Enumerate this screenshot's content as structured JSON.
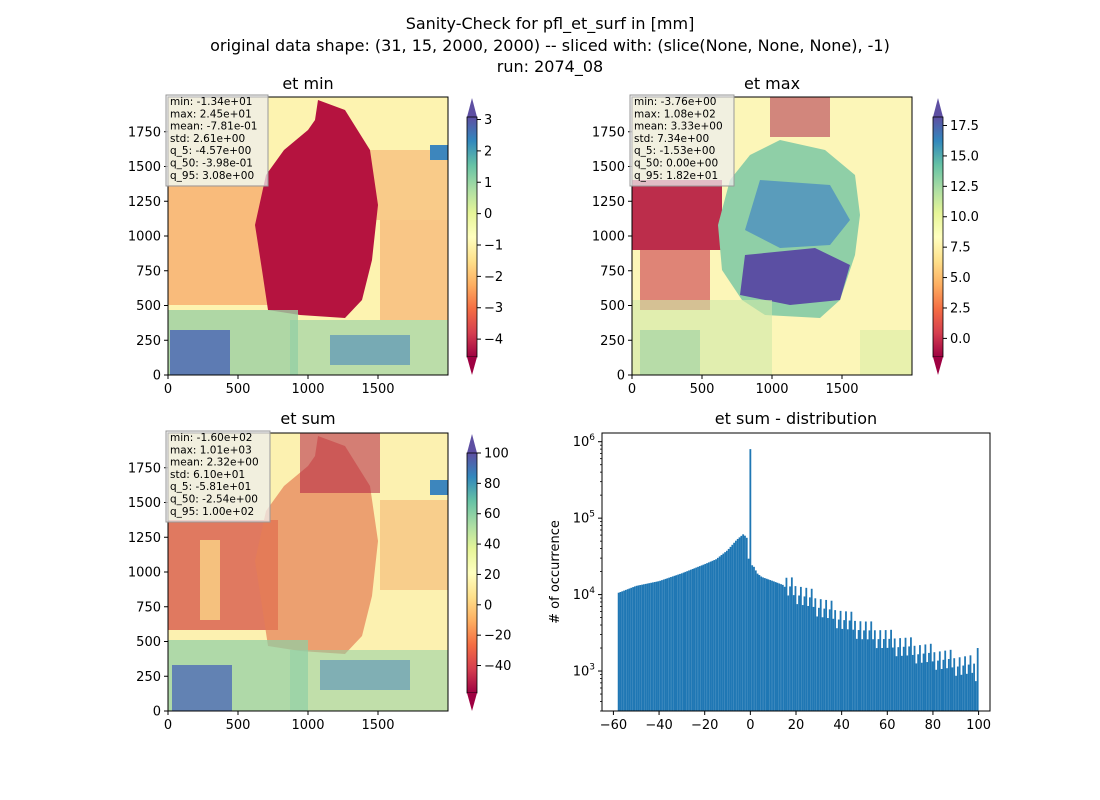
{
  "suptitle": {
    "line1": "Sanity-Check for pfl_et_surf in [mm]",
    "line2": "original data shape: (31, 15, 2000, 2000) -- sliced with: (slice(None, None, None), -1)",
    "line3": "run: 2074_08"
  },
  "chart_data": [
    {
      "type": "heatmap",
      "title": "et min",
      "x_ticks": [
        0,
        500,
        1000,
        1500
      ],
      "y_ticks": [
        0,
        250,
        500,
        750,
        1000,
        1250,
        1500,
        1750
      ],
      "xlim": [
        0,
        2000
      ],
      "ylim": [
        0,
        2000
      ],
      "colormap": "Spectral",
      "colorbar": {
        "vmin": -4.57,
        "vmax": 3.08,
        "ticks": [
          -4,
          -3,
          -2,
          -1,
          0,
          1,
          2,
          3
        ],
        "extend": "both"
      },
      "stats": [
        "min: -1.34e+01",
        "max: 2.45e+01",
        "mean: -7.81e-01",
        "std: 2.61e+00",
        "q_5: -4.57e+00",
        "q_50: -3.98e-01",
        "q_95: 3.08e+00"
      ]
    },
    {
      "type": "heatmap",
      "title": "et max",
      "x_ticks": [
        0,
        500,
        1000,
        1500
      ],
      "y_ticks": [
        0,
        250,
        500,
        750,
        1000,
        1250,
        1500,
        1750
      ],
      "xlim": [
        0,
        2000
      ],
      "ylim": [
        0,
        2000
      ],
      "colormap": "Spectral",
      "colorbar": {
        "vmin": -1.53,
        "vmax": 18.2,
        "ticks": [
          0.0,
          2.5,
          5.0,
          7.5,
          10.0,
          12.5,
          15.0,
          17.5
        ],
        "tick_labels": [
          "0.0",
          "2.5",
          "5.0",
          "7.5",
          "10.0",
          "12.5",
          "15.0",
          "17.5"
        ],
        "extend": "both"
      },
      "stats": [
        "min: -3.76e+00",
        "max: 1.08e+02",
        "mean: 3.33e+00",
        "std: 7.34e+00",
        "q_5: -1.53e+00",
        "q_50: 0.00e+00",
        "q_95: 1.82e+01"
      ]
    },
    {
      "type": "heatmap",
      "title": "et sum",
      "x_ticks": [
        0,
        500,
        1000,
        1500
      ],
      "y_ticks": [
        0,
        250,
        500,
        750,
        1000,
        1250,
        1500,
        1750
      ],
      "xlim": [
        0,
        2000
      ],
      "ylim": [
        0,
        2000
      ],
      "colormap": "Spectral",
      "colorbar": {
        "vmin": -58.1,
        "vmax": 100,
        "ticks": [
          -40,
          -20,
          0,
          20,
          40,
          60,
          80,
          100
        ],
        "extend": "both"
      },
      "stats": [
        "min: -1.60e+02",
        "max: 1.01e+03",
        "mean: 2.32e+00",
        "std: 6.10e+01",
        "q_5: -5.81e+01",
        "q_50: -2.54e+00",
        "q_95: 1.00e+02"
      ]
    },
    {
      "type": "bar",
      "title": "et sum - distribution",
      "ylabel": "# of occurrence",
      "xlabel": "",
      "yscale": "log",
      "xlim": [
        -65,
        105
      ],
      "ylim": [
        300,
        1300000
      ],
      "x_ticks": [
        -60,
        -40,
        -20,
        0,
        20,
        40,
        60,
        80,
        100
      ],
      "y_ticks": [
        1000,
        10000,
        100000,
        1000000
      ],
      "y_tick_labels": [
        "10^3",
        "10^4",
        "10^5",
        "10^6"
      ],
      "color": "#1f77b4",
      "bins": {
        "start": -58.1,
        "end": 100,
        "count": 200
      },
      "anchors": [
        [
          -58,
          10500
        ],
        [
          -50,
          13000
        ],
        [
          -40,
          15000
        ],
        [
          -30,
          19000
        ],
        [
          -20,
          25000
        ],
        [
          -15,
          29000
        ],
        [
          -10,
          38000
        ],
        [
          -6,
          52000
        ],
        [
          -3,
          62000
        ],
        [
          -1.5,
          55000
        ],
        [
          -0.6,
          25000
        ],
        [
          -0.2,
          800000
        ],
        [
          0.2,
          22000
        ],
        [
          1,
          25000
        ],
        [
          3,
          19000
        ],
        [
          5,
          17000
        ],
        [
          10,
          15000
        ],
        [
          20,
          11500
        ],
        [
          30,
          7500
        ],
        [
          40,
          5000
        ],
        [
          50,
          3500
        ],
        [
          60,
          2600
        ],
        [
          70,
          2000
        ],
        [
          80,
          1600
        ],
        [
          90,
          1300
        ],
        [
          99,
          1100
        ]
      ],
      "end_spike": [
        99.6,
        2000
      ]
    }
  ]
}
